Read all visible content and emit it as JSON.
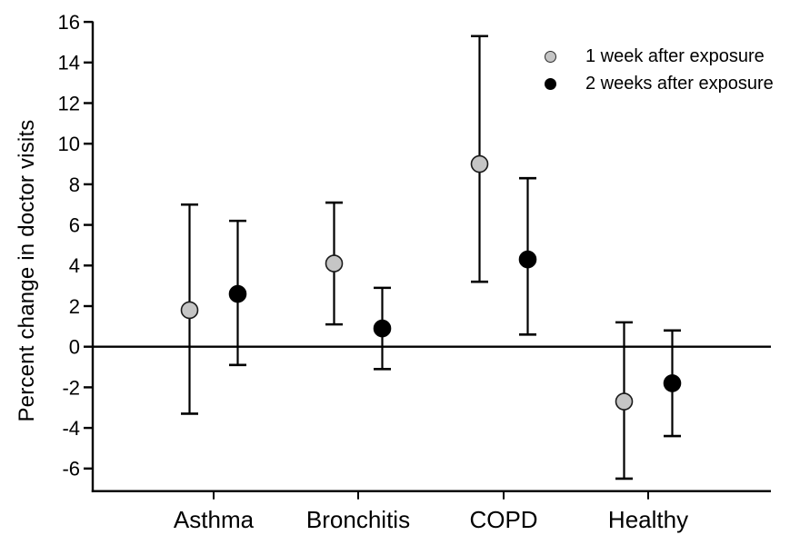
{
  "chart_data": {
    "type": "scatter",
    "subtype": "point-estimates-with-error-bars",
    "title": "",
    "xlabel": "",
    "ylabel": "Percent change in doctor visits",
    "categories": [
      "Asthma",
      "Bronchitis",
      "COPD",
      "Healthy"
    ],
    "y_ticks": [
      16,
      14,
      12,
      10,
      8,
      6,
      4,
      2,
      0,
      -2,
      -4,
      -6
    ],
    "ylim": [
      -7.1,
      16
    ],
    "reference_line_y": 0,
    "grid": false,
    "legend_position": "top-right-inside",
    "axis_color": "#000000",
    "error_bar_color": "#000000",
    "series": [
      {
        "name": "1 week after exposure",
        "marker": "circle",
        "marker_fill": "#c5c5c5",
        "marker_stroke": "#1a1a1a",
        "values": [
          1.8,
          4.1,
          9.0,
          -2.7
        ],
        "ci_low": [
          -3.3,
          1.1,
          3.2,
          -6.5
        ],
        "ci_high": [
          7.0,
          7.1,
          15.3,
          1.2
        ]
      },
      {
        "name": "2 weeks after exposure",
        "marker": "circle",
        "marker_fill": "#000000",
        "marker_stroke": "#000000",
        "values": [
          2.6,
          0.9,
          4.3,
          -1.8
        ],
        "ci_low": [
          -0.9,
          -1.1,
          0.6,
          -4.4
        ],
        "ci_high": [
          6.2,
          2.9,
          8.3,
          0.8
        ]
      }
    ]
  }
}
